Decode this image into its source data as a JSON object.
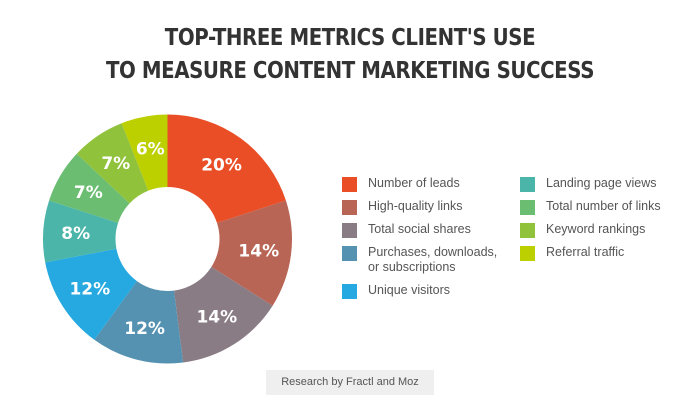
{
  "title": {
    "line1": "TOP-THREE METRICS CLIENT'S USE",
    "line2": "TO MEASURE CONTENT MARKETING SUCCESS"
  },
  "footer": {
    "label": "Research by Fractl and Moz"
  },
  "chart_data": {
    "type": "pie",
    "subtype": "donut",
    "title": "TOP-THREE METRICS CLIENT'S USE TO MEASURE CONTENT MARKETING SUCCESS",
    "categories": [
      "Number of leads",
      "High-quality links",
      "Total social shares",
      "Purchases, downloads, or subscriptions",
      "Unique visitors",
      "Landing page views",
      "Total number of links",
      "Keyword rankings",
      "Referral traffic"
    ],
    "values": [
      20,
      14,
      14,
      12,
      12,
      8,
      7,
      7,
      6
    ],
    "labels": [
      "20%",
      "14%",
      "14%",
      "12%",
      "12%",
      "8%",
      "7%",
      "7%",
      "6%"
    ],
    "colors": [
      "#e94e26",
      "#b96555",
      "#8a7c85",
      "#5592b2",
      "#26a9e0",
      "#4ab5a8",
      "#6bbd72",
      "#90c23c",
      "#bcd000"
    ],
    "start_angle": "12 o'clock, clockwise",
    "legend_position": "right",
    "source": "Research by Fractl and Moz"
  },
  "legend": {
    "left": [
      {
        "label": "Number of leads",
        "color": "#e94e26"
      },
      {
        "label": "High-quality links",
        "color": "#b96555"
      },
      {
        "label": "Total social shares",
        "color": "#8a7c85"
      },
      {
        "label": "Purchases, downloads,",
        "label2": "or subscriptions",
        "color": "#5592b2"
      },
      {
        "label": "Unique visitors",
        "color": "#26a9e0"
      }
    ],
    "right": [
      {
        "label": "Landing page views",
        "color": "#4ab5a8"
      },
      {
        "label": "Total number of links",
        "color": "#6bbd72"
      },
      {
        "label": "Keyword rankings",
        "color": "#90c23c"
      },
      {
        "label": "Referral traffic",
        "color": "#bcd000"
      }
    ]
  }
}
